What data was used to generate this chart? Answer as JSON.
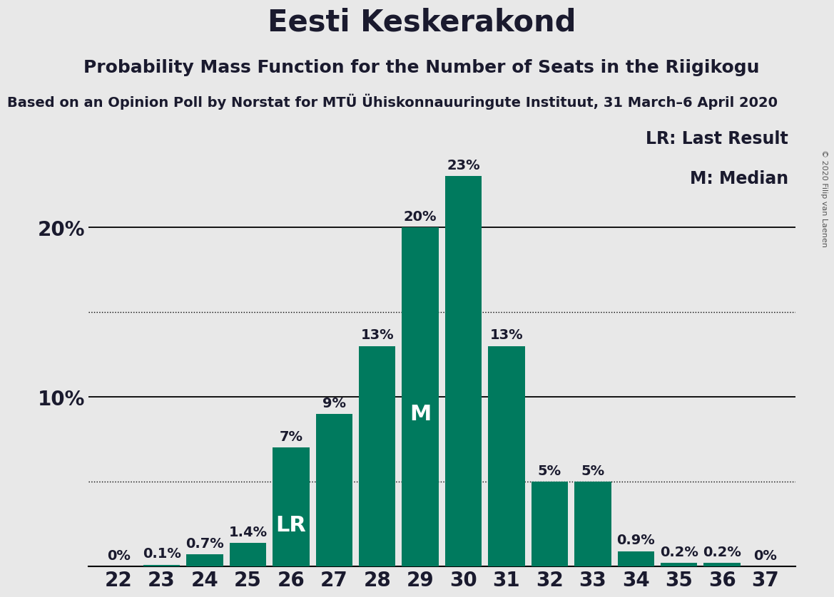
{
  "title": "Eesti Keskerakond",
  "subtitle": "Probability Mass Function for the Number of Seats in the Riigikogu",
  "source_line": "Based on an Opinion Poll by Norstat for MTÜ Ühiskonnauuringute Instituut, 31 March–6 April 2020",
  "copyright": "© 2020 Filip van Laenen",
  "seats": [
    22,
    23,
    24,
    25,
    26,
    27,
    28,
    29,
    30,
    31,
    32,
    33,
    34,
    35,
    36,
    37
  ],
  "probabilities": [
    0.0,
    0.1,
    0.7,
    1.4,
    7.0,
    9.0,
    13.0,
    20.0,
    23.0,
    13.0,
    5.0,
    5.0,
    0.9,
    0.2,
    0.2,
    0.0
  ],
  "bar_color": "#007A5E",
  "background_color": "#E8E8E8",
  "last_result_seat": 26,
  "median_seat": 29,
  "legend_lr": "LR: Last Result",
  "legend_m": "M: Median",
  "dotted_lines": [
    5.0,
    15.0
  ],
  "solid_lines": [
    10.0,
    20.0
  ],
  "title_fontsize": 30,
  "subtitle_fontsize": 18,
  "source_fontsize": 14,
  "bar_label_fontsize": 14,
  "axis_tick_fontsize": 20,
  "legend_fontsize": 17,
  "lr_m_fontsize": 22,
  "ylim_max": 26,
  "xlim_min": 21.3,
  "xlim_max": 37.7
}
